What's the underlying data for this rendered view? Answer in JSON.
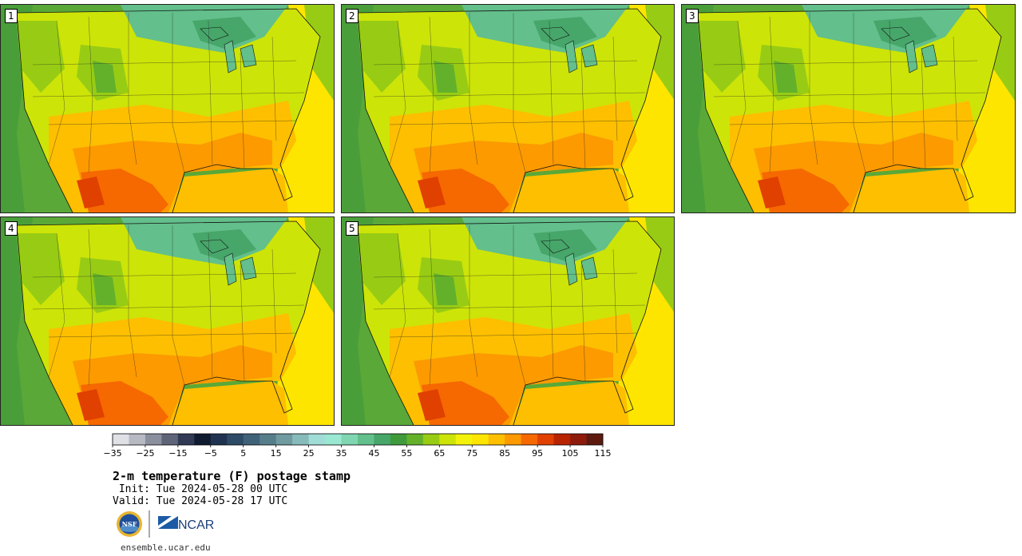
{
  "stamps": [
    {
      "label": "1"
    },
    {
      "label": "2"
    },
    {
      "label": "3"
    },
    {
      "label": "4"
    },
    {
      "label": "5"
    }
  ],
  "colorbar": {
    "colors": [
      "#dfe1e6",
      "#b8bac3",
      "#8a909e",
      "#5f6579",
      "#303a55",
      "#0f1b2f",
      "#1f3350",
      "#2d4a66",
      "#3f6278",
      "#567d8a",
      "#6e9aa0",
      "#87bbbb",
      "#a0ddd6",
      "#9ae8d2",
      "#7fd6b0",
      "#63bf8b",
      "#47a66a",
      "#3f9a3c",
      "#63b12a",
      "#98cc14",
      "#cde408",
      "#f4f20a",
      "#fde500",
      "#fdbf00",
      "#fc9a00",
      "#f66800",
      "#e04000",
      "#b82300",
      "#8e1a0b",
      "#5c1a0f"
    ],
    "tick_labels": [
      "−35",
      "−25",
      "−15",
      "−5",
      "5",
      "15",
      "25",
      "35",
      "45",
      "55",
      "65",
      "75",
      "85",
      "95",
      "105",
      "115"
    ]
  },
  "title": "2-m temperature (F) postage stamp",
  "init_text": " Init: Tue 2024-05-28 00 UTC",
  "valid_text": "Valid: Tue 2024-05-28 17 UTC",
  "logos": {
    "nsf": "NSF",
    "ncar": "NCAR"
  },
  "site": "ensemble.ucar.edu"
}
